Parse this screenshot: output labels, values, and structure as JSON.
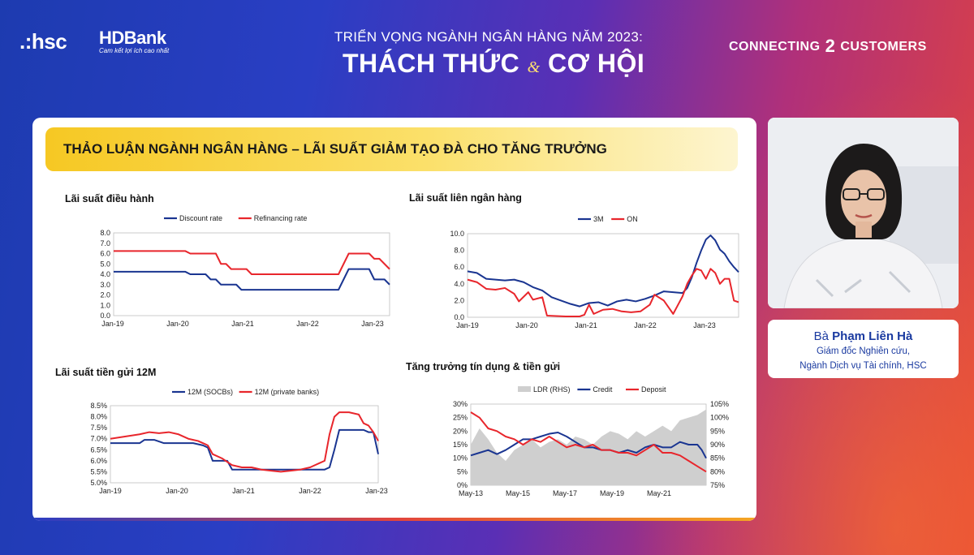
{
  "header": {
    "brand_hsc": ".:hsc",
    "brand_hdbank": "HDBank",
    "brand_hdbank_slogan": "Cam kết lợi ích cao nhất",
    "subtitle": "TRIỂN VỌNG NGÀNH NGÂN HÀNG NĂM 2023:",
    "title_left": "THÁCH THỨC",
    "title_amp": "&",
    "title_right": "CƠ HỘI",
    "tagline_left": "CONNECTING",
    "tagline_mark": "2",
    "tagline_right": "CUSTOMERS"
  },
  "slide": {
    "banner": "THẢO LUẬN NGÀNH NGÂN HÀNG – LÃI SUẤT GIẢM TẠO ĐÀ CHO TĂNG TRƯỞNG"
  },
  "speaker": {
    "prefix": "Bà ",
    "name": "Phạm Liên Hà",
    "role_line1": "Giám đốc Nghiên cứu,",
    "role_line2": "Ngành Dịch vụ Tài chính, HSC"
  },
  "colors": {
    "navy": "#1a3591",
    "red": "#e8262c",
    "gray_area": "#cfcfcf"
  },
  "chart_data": [
    {
      "type": "line",
      "title": "Lãi suất điều hành",
      "x_ticks": [
        "Jan-19",
        "Jan-20",
        "Jan-21",
        "Jan-22",
        "Jan-23"
      ],
      "y_ticks": [
        "8.0",
        "7.0",
        "6.0",
        "5.0",
        "4.0",
        "3.0",
        "2.0",
        "1.0",
        "0.0"
      ],
      "ylim": [
        0,
        8
      ],
      "series": [
        {
          "name": "Discount rate",
          "color": "#1a3591",
          "points": [
            [
              0,
              4.25
            ],
            [
              14,
              4.25
            ],
            [
              15,
              4.0
            ],
            [
              18,
              4.0
            ],
            [
              19,
              3.5
            ],
            [
              20,
              3.5
            ],
            [
              21,
              3.0
            ],
            [
              24,
              3.0
            ],
            [
              25,
              2.5
            ],
            [
              44,
              2.5
            ],
            [
              45,
              3.5
            ],
            [
              46,
              4.5
            ],
            [
              50,
              4.5
            ],
            [
              51,
              3.5
            ],
            [
              53,
              3.5
            ],
            [
              54,
              3.0
            ]
          ]
        },
        {
          "name": "Refinancing rate",
          "color": "#e8262c",
          "points": [
            [
              0,
              6.25
            ],
            [
              14,
              6.25
            ],
            [
              15,
              6.0
            ],
            [
              20,
              6.0
            ],
            [
              21,
              5.0
            ],
            [
              22,
              5.0
            ],
            [
              23,
              4.5
            ],
            [
              26,
              4.5
            ],
            [
              27,
              4.0
            ],
            [
              44,
              4.0
            ],
            [
              45,
              5.0
            ],
            [
              46,
              6.0
            ],
            [
              50,
              6.0
            ],
            [
              51,
              5.5
            ],
            [
              52,
              5.5
            ],
            [
              54,
              4.5
            ]
          ]
        }
      ]
    },
    {
      "type": "line",
      "title": "Lãi suất liên ngân hàng",
      "x_ticks": [
        "Jan-19",
        "Jan-20",
        "Jan-21",
        "Jan-22",
        "Jan-23"
      ],
      "y_ticks": [
        "10.0",
        "8.0",
        "6.0",
        "4.0",
        "2.0",
        "0.0"
      ],
      "ylim": [
        0,
        10
      ],
      "series": [
        {
          "name": "3M",
          "color": "#1a3591",
          "points": [
            [
              0,
              5.5
            ],
            [
              2,
              5.3
            ],
            [
              4,
              4.6
            ],
            [
              6,
              4.5
            ],
            [
              8,
              4.4
            ],
            [
              10,
              4.5
            ],
            [
              12,
              4.2
            ],
            [
              14,
              3.6
            ],
            [
              16,
              3.2
            ],
            [
              18,
              2.4
            ],
            [
              20,
              2.0
            ],
            [
              22,
              1.6
            ],
            [
              24,
              1.3
            ],
            [
              26,
              1.7
            ],
            [
              28,
              1.8
            ],
            [
              30,
              1.4
            ],
            [
              32,
              1.9
            ],
            [
              34,
              2.1
            ],
            [
              36,
              1.9
            ],
            [
              38,
              2.2
            ],
            [
              40,
              2.6
            ],
            [
              42,
              3.1
            ],
            [
              44,
              3.0
            ],
            [
              46,
              2.9
            ],
            [
              47,
              3.5
            ],
            [
              48,
              4.8
            ],
            [
              49,
              6.5
            ],
            [
              50,
              8.0
            ],
            [
              51,
              9.3
            ],
            [
              52,
              9.8
            ],
            [
              53,
              9.2
            ],
            [
              54,
              8.1
            ],
            [
              55,
              7.6
            ],
            [
              56,
              6.7
            ],
            [
              57,
              6.0
            ],
            [
              58,
              5.4
            ]
          ]
        },
        {
          "name": "ON",
          "color": "#e8262c",
          "points": [
            [
              0,
              4.5
            ],
            [
              2,
              4.2
            ],
            [
              4,
              3.4
            ],
            [
              6,
              3.3
            ],
            [
              8,
              3.5
            ],
            [
              10,
              2.8
            ],
            [
              11,
              1.9
            ],
            [
              13,
              3.0
            ],
            [
              14,
              2.1
            ],
            [
              16,
              2.4
            ],
            [
              17,
              0.2
            ],
            [
              19,
              0.15
            ],
            [
              21,
              0.1
            ],
            [
              24,
              0.1
            ],
            [
              25,
              0.3
            ],
            [
              26,
              1.5
            ],
            [
              27,
              0.4
            ],
            [
              29,
              0.9
            ],
            [
              31,
              1.0
            ],
            [
              33,
              0.7
            ],
            [
              35,
              0.6
            ],
            [
              37,
              0.7
            ],
            [
              39,
              1.5
            ],
            [
              40,
              2.7
            ],
            [
              42,
              2.0
            ],
            [
              44,
              0.4
            ],
            [
              46,
              2.5
            ],
            [
              47,
              4.0
            ],
            [
              48,
              5.0
            ],
            [
              49,
              5.8
            ],
            [
              50,
              5.6
            ],
            [
              51,
              4.6
            ],
            [
              52,
              5.8
            ],
            [
              53,
              5.3
            ],
            [
              54,
              4.0
            ],
            [
              55,
              4.6
            ],
            [
              56,
              4.6
            ],
            [
              57,
              2.0
            ],
            [
              58,
              1.8
            ]
          ]
        }
      ]
    },
    {
      "type": "line",
      "title": "Lãi suất tiền gửi 12M",
      "x_ticks": [
        "Jan-19",
        "Jan-20",
        "Jan-21",
        "Jan-22",
        "Jan-23"
      ],
      "y_ticks": [
        "8.5%",
        "8.0%",
        "7.5%",
        "7.0%",
        "6.5%",
        "6.0%",
        "5.5%",
        "5.0%"
      ],
      "ylim": [
        5.0,
        8.5
      ],
      "series": [
        {
          "name": "12M (SOCBs)",
          "color": "#1a3591",
          "points": [
            [
              0,
              6.8
            ],
            [
              6,
              6.8
            ],
            [
              7,
              6.95
            ],
            [
              9,
              6.95
            ],
            [
              11,
              6.8
            ],
            [
              17,
              6.8
            ],
            [
              19,
              6.7
            ],
            [
              20,
              6.6
            ],
            [
              21,
              6.0
            ],
            [
              24,
              6.0
            ],
            [
              25,
              5.6
            ],
            [
              44,
              5.6
            ],
            [
              45,
              5.7
            ],
            [
              46,
              6.5
            ],
            [
              47,
              7.4
            ],
            [
              48,
              7.4
            ],
            [
              52,
              7.4
            ],
            [
              53,
              7.3
            ],
            [
              54,
              7.3
            ],
            [
              55,
              6.3
            ]
          ]
        },
        {
          "name": "12M (private banks)",
          "color": "#e8262c",
          "points": [
            [
              0,
              7.0
            ],
            [
              3,
              7.1
            ],
            [
              6,
              7.2
            ],
            [
              8,
              7.3
            ],
            [
              10,
              7.25
            ],
            [
              12,
              7.3
            ],
            [
              14,
              7.2
            ],
            [
              16,
              7.0
            ],
            [
              18,
              6.9
            ],
            [
              20,
              6.7
            ],
            [
              21,
              6.3
            ],
            [
              23,
              6.1
            ],
            [
              25,
              5.8
            ],
            [
              27,
              5.7
            ],
            [
              29,
              5.7
            ],
            [
              31,
              5.6
            ],
            [
              33,
              5.55
            ],
            [
              35,
              5.5
            ],
            [
              37,
              5.55
            ],
            [
              39,
              5.6
            ],
            [
              41,
              5.7
            ],
            [
              43,
              5.9
            ],
            [
              44,
              6.0
            ],
            [
              45,
              7.2
            ],
            [
              46,
              8.0
            ],
            [
              47,
              8.2
            ],
            [
              49,
              8.2
            ],
            [
              51,
              8.1
            ],
            [
              52,
              7.7
            ],
            [
              53,
              7.6
            ],
            [
              54,
              7.3
            ],
            [
              55,
              6.9
            ]
          ]
        }
      ]
    },
    {
      "type": "line",
      "title": "Tăng trưởng tín dụng & tiền gửi",
      "x_ticks": [
        "May-13",
        "May-15",
        "May-17",
        "May-19",
        "May-21"
      ],
      "y_ticks_left": [
        "30%",
        "25%",
        "20%",
        "15%",
        "10%",
        "5%",
        "0%"
      ],
      "y_ticks_right": [
        "105%",
        "100%",
        "95%",
        "90%",
        "85%",
        "80%",
        "75%"
      ],
      "ylim_left": [
        0,
        30
      ],
      "ylim_right": [
        75,
        105
      ],
      "series": [
        {
          "name": "LDR (RHS)",
          "color": "#cfcfcf",
          "kind": "area",
          "axis": "right",
          "points": [
            [
              0,
              90
            ],
            [
              2,
              96
            ],
            [
              4,
              92
            ],
            [
              6,
              87
            ],
            [
              8,
              84
            ],
            [
              10,
              88
            ],
            [
              12,
              90
            ],
            [
              14,
              92
            ],
            [
              16,
              89
            ],
            [
              18,
              91
            ],
            [
              20,
              92
            ],
            [
              22,
              90
            ],
            [
              24,
              93
            ],
            [
              26,
              92
            ],
            [
              28,
              90
            ],
            [
              30,
              93
            ],
            [
              32,
              95
            ],
            [
              34,
              94
            ],
            [
              36,
              92
            ],
            [
              38,
              95
            ],
            [
              40,
              93
            ],
            [
              42,
              95
            ],
            [
              44,
              97
            ],
            [
              46,
              95
            ],
            [
              48,
              99
            ],
            [
              50,
              100
            ],
            [
              52,
              101
            ],
            [
              54,
              103
            ]
          ]
        },
        {
          "name": "Credit",
          "color": "#1a3591",
          "axis": "left",
          "points": [
            [
              0,
              11
            ],
            [
              2,
              12
            ],
            [
              4,
              13
            ],
            [
              6,
              11.5
            ],
            [
              8,
              13
            ],
            [
              10,
              15
            ],
            [
              12,
              17
            ],
            [
              14,
              17
            ],
            [
              16,
              18
            ],
            [
              18,
              19
            ],
            [
              20,
              19.5
            ],
            [
              22,
              18
            ],
            [
              24,
              16
            ],
            [
              26,
              14
            ],
            [
              28,
              14
            ],
            [
              30,
              13
            ],
            [
              32,
              13
            ],
            [
              34,
              12
            ],
            [
              36,
              13
            ],
            [
              38,
              12
            ],
            [
              40,
              14
            ],
            [
              42,
              15
            ],
            [
              44,
              14
            ],
            [
              46,
              14
            ],
            [
              48,
              16
            ],
            [
              50,
              15
            ],
            [
              52,
              15
            ],
            [
              53,
              13
            ],
            [
              54,
              10
            ]
          ]
        },
        {
          "name": "Deposit",
          "color": "#e8262c",
          "axis": "left",
          "points": [
            [
              0,
              27
            ],
            [
              2,
              25
            ],
            [
              4,
              21
            ],
            [
              6,
              20
            ],
            [
              8,
              18
            ],
            [
              10,
              17
            ],
            [
              12,
              15
            ],
            [
              14,
              17
            ],
            [
              16,
              16
            ],
            [
              18,
              18
            ],
            [
              20,
              16
            ],
            [
              22,
              14
            ],
            [
              24,
              15
            ],
            [
              26,
              14
            ],
            [
              28,
              15
            ],
            [
              30,
              13
            ],
            [
              32,
              13
            ],
            [
              34,
              12
            ],
            [
              36,
              12
            ],
            [
              38,
              11
            ],
            [
              40,
              13
            ],
            [
              42,
              15
            ],
            [
              44,
              12
            ],
            [
              46,
              12
            ],
            [
              48,
              11
            ],
            [
              50,
              9
            ],
            [
              52,
              7
            ],
            [
              54,
              5
            ]
          ]
        }
      ]
    }
  ]
}
